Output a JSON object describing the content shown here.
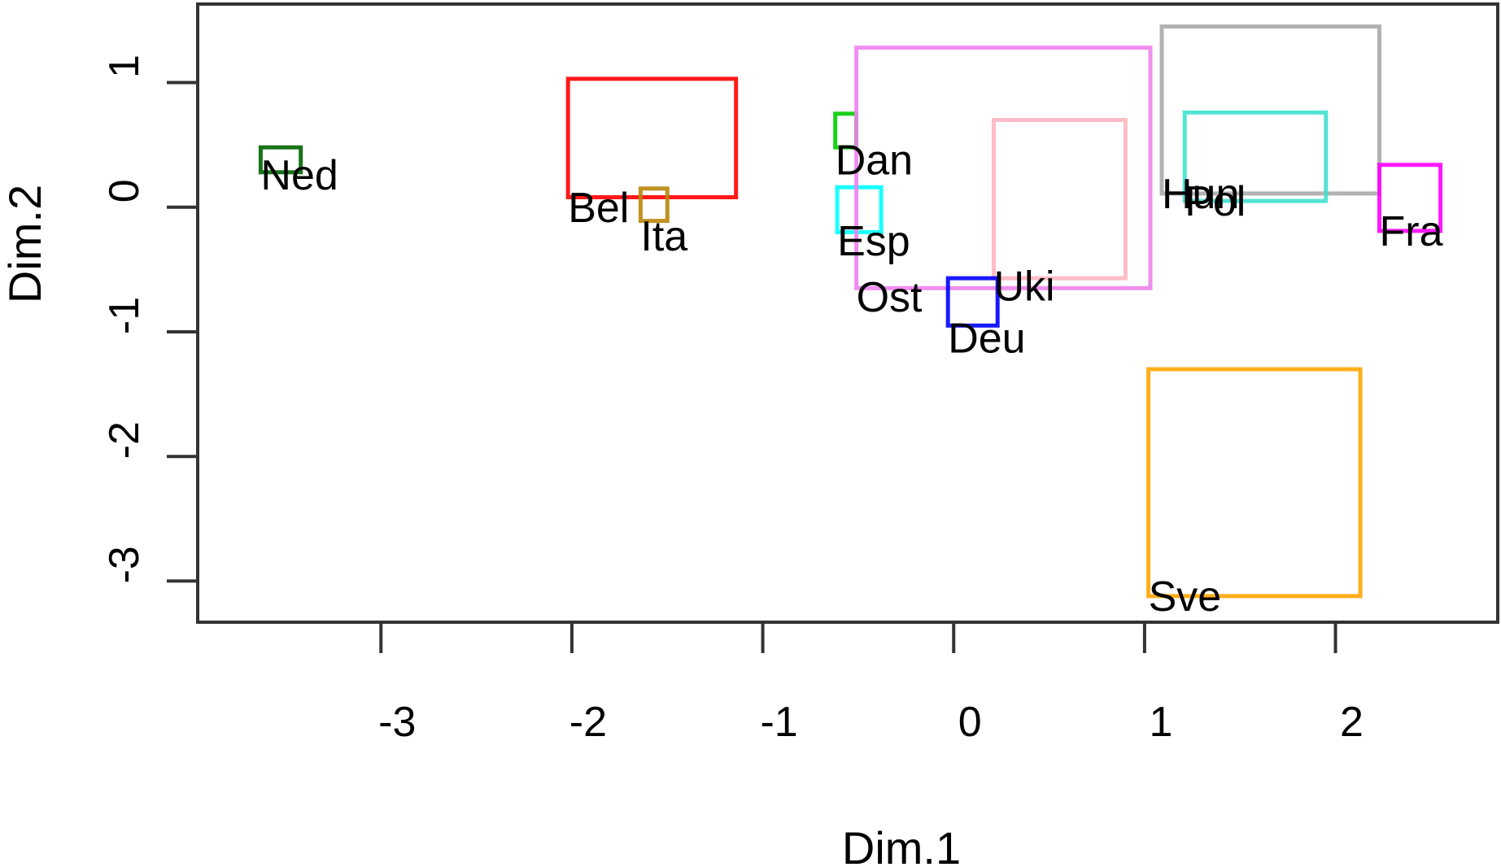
{
  "chart_data": {
    "type": "scatter",
    "title": "",
    "xlabel": "Dim.1",
    "ylabel": "Dim.2",
    "xlim": [
      -3.96,
      2.85
    ],
    "ylim": [
      -3.33,
      1.63
    ],
    "xticks": [
      -3,
      -2,
      -1,
      0,
      1,
      2
    ],
    "yticks": [
      -3,
      -2,
      -1,
      0,
      1
    ],
    "xtick_labels": [
      "-3",
      "-2",
      "-1",
      "0",
      "1",
      "2"
    ],
    "ytick_labels": [
      "-3",
      "-2",
      "-1",
      "0",
      "1"
    ],
    "grid": false,
    "legend": "none",
    "points": [
      {
        "label": "Ned",
        "x": -3.63,
        "y": 0.26,
        "box": [
          -3.63,
          0.28,
          -3.42,
          0.48
        ],
        "color": "#006400"
      },
      {
        "label": "Bel",
        "x": -2.02,
        "y": 0.0,
        "box": [
          -2.02,
          0.08,
          -1.14,
          1.03
        ],
        "color": "#ff0000"
      },
      {
        "label": "Ita",
        "x": -1.64,
        "y": -0.23,
        "box": [
          -1.64,
          -0.11,
          -1.5,
          0.15
        ],
        "color": "#b8860b"
      },
      {
        "label": "Dan",
        "x": -0.62,
        "y": 0.38,
        "box": [
          -0.62,
          0.48,
          -0.51,
          0.75
        ],
        "color": "#00cc00"
      },
      {
        "label": "Esp",
        "x": -0.61,
        "y": -0.27,
        "box": [
          -0.61,
          -0.2,
          -0.38,
          0.16
        ],
        "color": "#00ffff"
      },
      {
        "label": "Ost",
        "x": -0.51,
        "y": -0.72,
        "box": [
          -0.51,
          -0.65,
          1.03,
          1.28
        ],
        "color": "#ee82ee"
      },
      {
        "label": "Uki",
        "x": 0.21,
        "y": -0.63,
        "box": [
          0.21,
          -0.57,
          0.9,
          0.7
        ],
        "color": "#ffb6c1"
      },
      {
        "label": "Deu",
        "x": -0.03,
        "y": -1.05,
        "box": [
          -0.03,
          -0.95,
          0.23,
          -0.57
        ],
        "color": "#0000ff"
      },
      {
        "label": "Hun",
        "x": 1.09,
        "y": 0.11,
        "box": [
          1.09,
          0.11,
          2.23,
          1.45
        ],
        "color": "#aaaaaa"
      },
      {
        "label": "Pol",
        "x": 1.21,
        "y": 0.05,
        "box": [
          1.21,
          0.05,
          1.95,
          0.76
        ],
        "color": "#40e0d0"
      },
      {
        "label": "Fra",
        "x": 2.23,
        "y": -0.19,
        "box": [
          2.23,
          -0.19,
          2.55,
          0.34
        ],
        "color": "#ff00ff"
      },
      {
        "label": "Sve",
        "x": 1.02,
        "y": -3.12,
        "box": [
          1.02,
          -3.12,
          2.13,
          -1.3
        ],
        "color": "#ffa500"
      }
    ]
  }
}
